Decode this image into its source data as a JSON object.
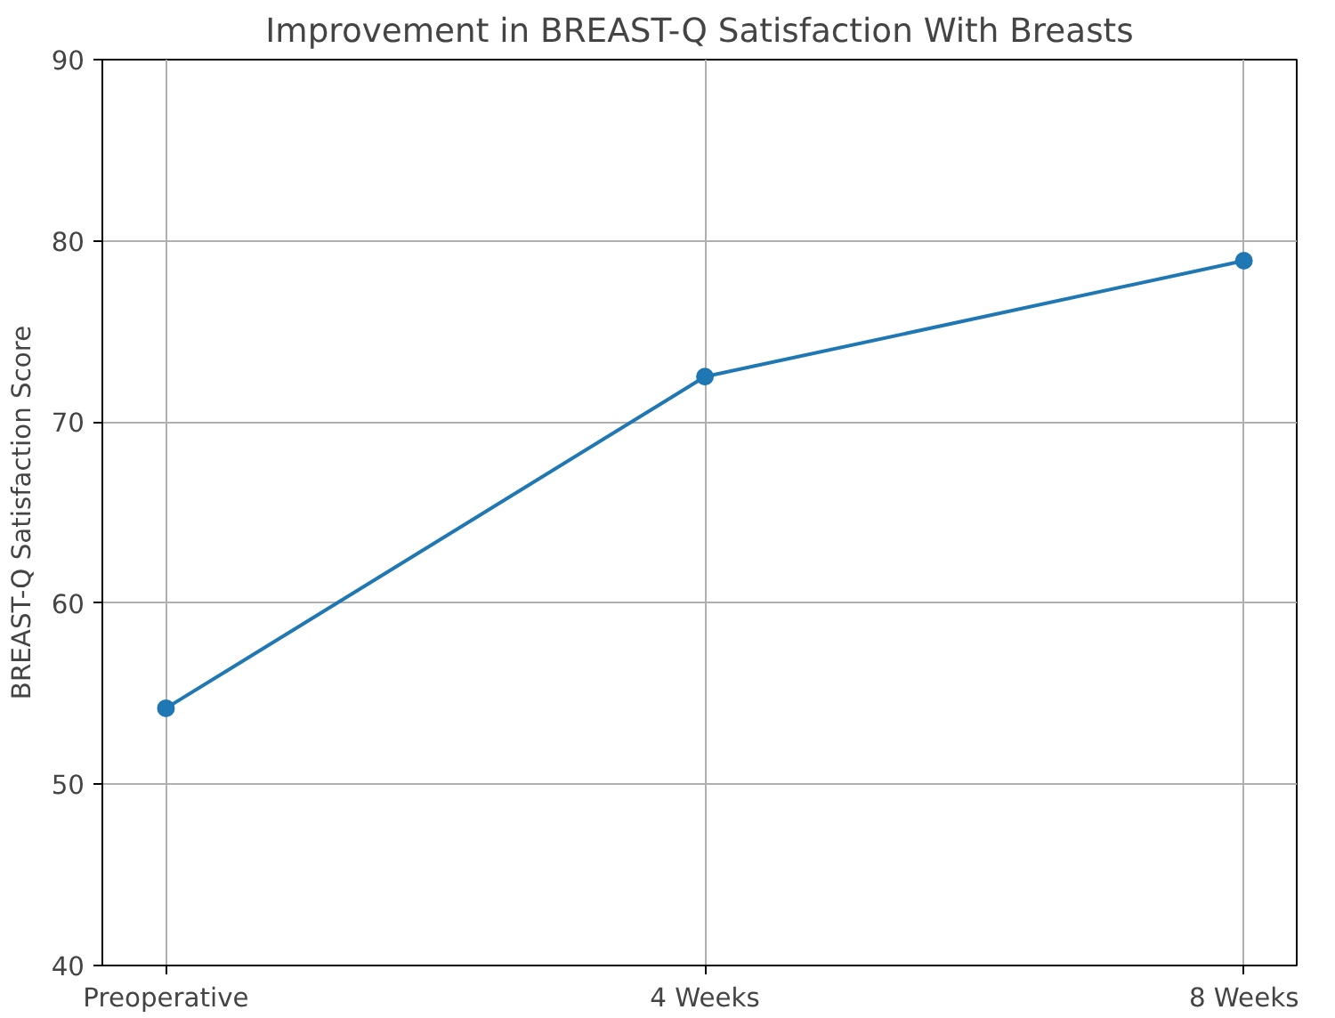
{
  "chart_data": {
    "type": "line",
    "title": "Improvement in BREAST-Q Satisfaction With Breasts",
    "ylabel": "BREAST-Q Satisfaction Score",
    "categories": [
      "Preoperative",
      "4 Weeks",
      "8 Weeks"
    ],
    "series": [
      {
        "color": "#1f77b4",
        "values": [
          54.2,
          72.5,
          78.9
        ]
      }
    ],
    "ylim": [
      40,
      90
    ],
    "yticks": [
      40,
      50,
      60,
      70,
      80,
      90
    ],
    "grid": true,
    "marker": "circle",
    "line_style": "solid"
  }
}
